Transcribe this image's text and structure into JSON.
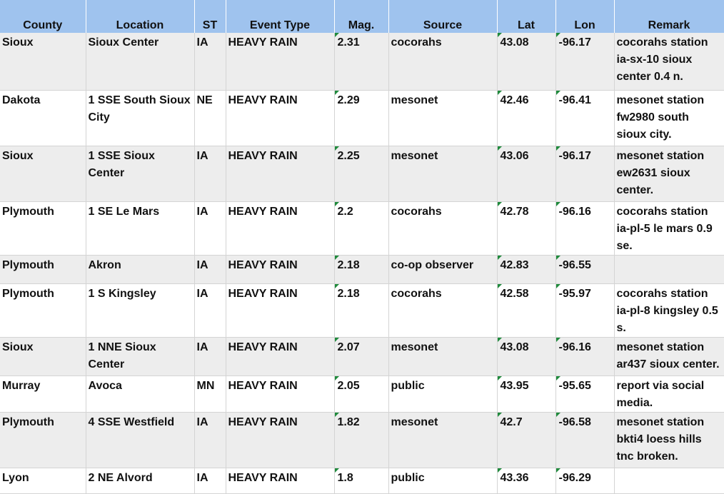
{
  "headers": [
    "County",
    "Location",
    "ST",
    "Event Type",
    "Mag.",
    "Source",
    "Lat",
    "Lon",
    "Remark"
  ],
  "rows": [
    [
      "Sioux",
      "Sioux Center",
      "IA",
      "HEAVY RAIN",
      "2.31",
      "cocorahs",
      "43.08",
      "-96.17",
      "cocorahs station ia-sx-10 sioux center 0.4 n."
    ],
    [
      "Dakota",
      "1 SSE South Sioux City",
      "NE",
      "HEAVY RAIN",
      "2.29",
      "mesonet",
      "42.46",
      "-96.41",
      "mesonet station fw2980 south sioux city."
    ],
    [
      "Sioux",
      "1 SSE Sioux Center",
      "IA",
      "HEAVY RAIN",
      "2.25",
      "mesonet",
      "43.06",
      "-96.17",
      "mesonet station ew2631 sioux center."
    ],
    [
      "Plymouth",
      "1 SE Le Mars",
      "IA",
      "HEAVY RAIN",
      "2.2",
      "cocorahs",
      "42.78",
      "-96.16",
      "cocorahs station ia-pl-5 le mars 0.9 se."
    ],
    [
      "Plymouth",
      "Akron",
      "IA",
      "HEAVY RAIN",
      "2.18",
      "co-op observer",
      "42.83",
      "-96.55",
      ""
    ],
    [
      "Plymouth",
      "1 S Kingsley",
      "IA",
      "HEAVY RAIN",
      "2.18",
      "cocorahs",
      "42.58",
      "-95.97",
      "cocorahs station ia-pl-8 kingsley 0.5 s."
    ],
    [
      "Sioux",
      "1 NNE Sioux Center",
      "IA",
      "HEAVY RAIN",
      "2.07",
      "mesonet",
      "43.08",
      "-96.16",
      "mesonet station ar437 sioux center."
    ],
    [
      "Murray",
      "Avoca",
      "MN",
      "HEAVY RAIN",
      "2.05",
      "public",
      "43.95",
      "-95.65",
      "report via social media."
    ],
    [
      "Plymouth",
      "4 SSE Westfield",
      "IA",
      "HEAVY RAIN",
      "1.82",
      "mesonet",
      "42.7",
      "-96.58",
      "mesonet station bkti4 loess hills tnc broken."
    ],
    [
      "Lyon",
      "2 NE Alvord",
      "IA",
      "HEAVY RAIN",
      "1.8",
      "public",
      "43.36",
      "-96.29",
      ""
    ]
  ]
}
